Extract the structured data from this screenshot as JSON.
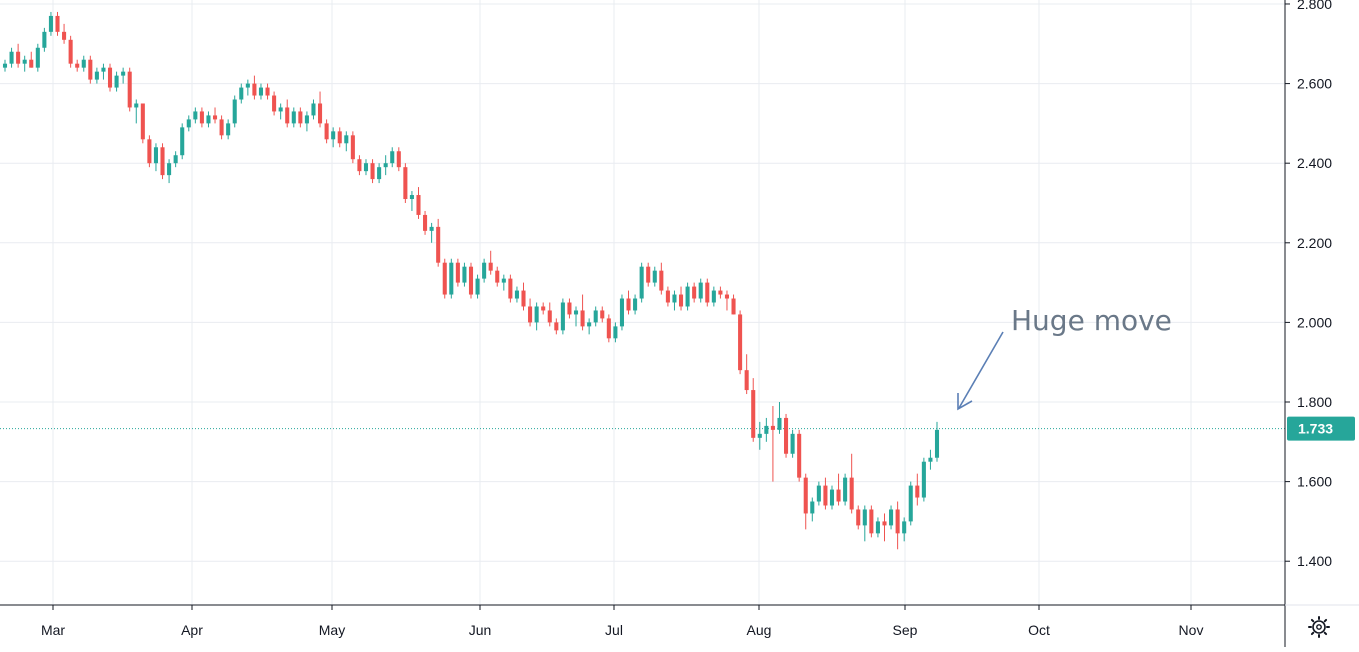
{
  "chart_data": {
    "type": "candlestick",
    "x_tick_labels": [
      "Mar",
      "Apr",
      "May",
      "Jun",
      "Jul",
      "Aug",
      "Sep",
      "Oct",
      "Nov"
    ],
    "y_tick_labels": [
      "1.400",
      "1.600",
      "1.800",
      "2.000",
      "2.200",
      "2.400",
      "2.600",
      "2.800"
    ],
    "ylim": [
      1.29,
      2.81
    ],
    "grid": true,
    "last_price": 1.733,
    "last_price_label": "1.733",
    "annotation": {
      "text": "Huge move"
    },
    "colors": {
      "up": "#26a69a",
      "down": "#ef5350",
      "price_line": "#26a69a",
      "grid": "#e9ecf1",
      "axis": "#131722"
    },
    "candles": [
      [
        2.64,
        2.66,
        2.63,
        2.65
      ],
      [
        2.65,
        2.69,
        2.64,
        2.68
      ],
      [
        2.68,
        2.7,
        2.64,
        2.65
      ],
      [
        2.65,
        2.67,
        2.63,
        2.66
      ],
      [
        2.66,
        2.68,
        2.64,
        2.64
      ],
      [
        2.64,
        2.7,
        2.63,
        2.69
      ],
      [
        2.69,
        2.74,
        2.68,
        2.73
      ],
      [
        2.73,
        2.78,
        2.72,
        2.77
      ],
      [
        2.77,
        2.78,
        2.72,
        2.73
      ],
      [
        2.73,
        2.75,
        2.7,
        2.71
      ],
      [
        2.71,
        2.72,
        2.64,
        2.65
      ],
      [
        2.65,
        2.66,
        2.63,
        2.64
      ],
      [
        2.64,
        2.67,
        2.63,
        2.66
      ],
      [
        2.66,
        2.67,
        2.6,
        2.61
      ],
      [
        2.61,
        2.64,
        2.6,
        2.63
      ],
      [
        2.63,
        2.65,
        2.61,
        2.64
      ],
      [
        2.64,
        2.65,
        2.58,
        2.59
      ],
      [
        2.59,
        2.63,
        2.58,
        2.62
      ],
      [
        2.62,
        2.64,
        2.6,
        2.63
      ],
      [
        2.63,
        2.64,
        2.53,
        2.54
      ],
      [
        2.54,
        2.56,
        2.5,
        2.55
      ],
      [
        2.55,
        2.55,
        2.45,
        2.46
      ],
      [
        2.46,
        2.47,
        2.39,
        2.4
      ],
      [
        2.4,
        2.45,
        2.38,
        2.44
      ],
      [
        2.44,
        2.45,
        2.36,
        2.37
      ],
      [
        2.37,
        2.41,
        2.35,
        2.4
      ],
      [
        2.4,
        2.43,
        2.39,
        2.42
      ],
      [
        2.42,
        2.5,
        2.41,
        2.49
      ],
      [
        2.49,
        2.52,
        2.48,
        2.51
      ],
      [
        2.51,
        2.54,
        2.5,
        2.53
      ],
      [
        2.53,
        2.54,
        2.49,
        2.5
      ],
      [
        2.5,
        2.53,
        2.49,
        2.52
      ],
      [
        2.52,
        2.54,
        2.5,
        2.51
      ],
      [
        2.51,
        2.52,
        2.46,
        2.47
      ],
      [
        2.47,
        2.51,
        2.46,
        2.5
      ],
      [
        2.5,
        2.57,
        2.49,
        2.56
      ],
      [
        2.56,
        2.6,
        2.55,
        2.59
      ],
      [
        2.59,
        2.61,
        2.57,
        2.6
      ],
      [
        2.6,
        2.62,
        2.56,
        2.57
      ],
      [
        2.57,
        2.6,
        2.56,
        2.59
      ],
      [
        2.59,
        2.6,
        2.56,
        2.57
      ],
      [
        2.57,
        2.58,
        2.52,
        2.53
      ],
      [
        2.53,
        2.55,
        2.51,
        2.54
      ],
      [
        2.54,
        2.56,
        2.49,
        2.5
      ],
      [
        2.5,
        2.54,
        2.49,
        2.53
      ],
      [
        2.53,
        2.54,
        2.49,
        2.5
      ],
      [
        2.5,
        2.53,
        2.48,
        2.52
      ],
      [
        2.52,
        2.56,
        2.51,
        2.55
      ],
      [
        2.55,
        2.58,
        2.49,
        2.5
      ],
      [
        2.5,
        2.51,
        2.45,
        2.46
      ],
      [
        2.46,
        2.49,
        2.44,
        2.48
      ],
      [
        2.48,
        2.49,
        2.44,
        2.45
      ],
      [
        2.45,
        2.48,
        2.43,
        2.47
      ],
      [
        2.47,
        2.48,
        2.4,
        2.41
      ],
      [
        2.41,
        2.42,
        2.37,
        2.38
      ],
      [
        2.38,
        2.41,
        2.37,
        2.4
      ],
      [
        2.4,
        2.41,
        2.35,
        2.36
      ],
      [
        2.36,
        2.4,
        2.35,
        2.39
      ],
      [
        2.39,
        2.42,
        2.37,
        2.4
      ],
      [
        2.4,
        2.44,
        2.39,
        2.43
      ],
      [
        2.43,
        2.44,
        2.38,
        2.39
      ],
      [
        2.39,
        2.4,
        2.3,
        2.31
      ],
      [
        2.31,
        2.33,
        2.28,
        2.32
      ],
      [
        2.32,
        2.34,
        2.26,
        2.27
      ],
      [
        2.27,
        2.28,
        2.22,
        2.23
      ],
      [
        2.23,
        2.25,
        2.2,
        2.24
      ],
      [
        2.24,
        2.26,
        2.14,
        2.15
      ],
      [
        2.15,
        2.16,
        2.06,
        2.07
      ],
      [
        2.07,
        2.16,
        2.06,
        2.15
      ],
      [
        2.15,
        2.16,
        2.09,
        2.1
      ],
      [
        2.1,
        2.15,
        2.09,
        2.14
      ],
      [
        2.14,
        2.15,
        2.06,
        2.07
      ],
      [
        2.07,
        2.12,
        2.06,
        2.11
      ],
      [
        2.11,
        2.16,
        2.1,
        2.15
      ],
      [
        2.15,
        2.18,
        2.12,
        2.13
      ],
      [
        2.13,
        2.14,
        2.09,
        2.1
      ],
      [
        2.1,
        2.12,
        2.08,
        2.11
      ],
      [
        2.11,
        2.12,
        2.05,
        2.06
      ],
      [
        2.06,
        2.09,
        2.05,
        2.08
      ],
      [
        2.08,
        2.1,
        2.03,
        2.04
      ],
      [
        2.04,
        2.06,
        1.99,
        2.0
      ],
      [
        2.0,
        2.05,
        1.98,
        2.04
      ],
      [
        2.04,
        2.05,
        2.02,
        2.03
      ],
      [
        2.03,
        2.05,
        1.99,
        2.0
      ],
      [
        2.0,
        2.01,
        1.97,
        1.98
      ],
      [
        1.98,
        2.06,
        1.97,
        2.05
      ],
      [
        2.05,
        2.06,
        2.01,
        2.02
      ],
      [
        2.02,
        2.04,
        1.99,
        2.03
      ],
      [
        2.03,
        2.07,
        1.98,
        1.99
      ],
      [
        1.99,
        2.01,
        1.97,
        2.0
      ],
      [
        2.0,
        2.04,
        1.99,
        2.03
      ],
      [
        2.03,
        2.04,
        2.0,
        2.01
      ],
      [
        2.01,
        2.02,
        1.95,
        1.96
      ],
      [
        1.96,
        2.0,
        1.95,
        1.99
      ],
      [
        1.99,
        2.07,
        1.98,
        2.06
      ],
      [
        2.06,
        2.08,
        2.02,
        2.03
      ],
      [
        2.03,
        2.07,
        2.02,
        2.06
      ],
      [
        2.06,
        2.15,
        2.05,
        2.14
      ],
      [
        2.14,
        2.15,
        2.09,
        2.1
      ],
      [
        2.1,
        2.14,
        2.09,
        2.13
      ],
      [
        2.13,
        2.15,
        2.07,
        2.08
      ],
      [
        2.08,
        2.09,
        2.04,
        2.05
      ],
      [
        2.05,
        2.08,
        2.03,
        2.07
      ],
      [
        2.07,
        2.09,
        2.03,
        2.04
      ],
      [
        2.04,
        2.1,
        2.03,
        2.09
      ],
      [
        2.09,
        2.1,
        2.05,
        2.06
      ],
      [
        2.06,
        2.11,
        2.05,
        2.1
      ],
      [
        2.1,
        2.11,
        2.04,
        2.05
      ],
      [
        2.05,
        2.09,
        2.04,
        2.08
      ],
      [
        2.08,
        2.09,
        2.06,
        2.07
      ],
      [
        2.07,
        2.08,
        2.03,
        2.06
      ],
      [
        2.06,
        2.07,
        2.02,
        2.02
      ],
      [
        2.02,
        2.03,
        1.87,
        1.88
      ],
      [
        1.88,
        1.92,
        1.82,
        1.83
      ],
      [
        1.83,
        1.86,
        1.7,
        1.71
      ],
      [
        1.71,
        1.75,
        1.68,
        1.72
      ],
      [
        1.72,
        1.76,
        1.7,
        1.74
      ],
      [
        1.74,
        1.79,
        1.6,
        1.73
      ],
      [
        1.73,
        1.8,
        1.72,
        1.76
      ],
      [
        1.76,
        1.77,
        1.66,
        1.67
      ],
      [
        1.67,
        1.73,
        1.66,
        1.72
      ],
      [
        1.72,
        1.73,
        1.6,
        1.61
      ],
      [
        1.61,
        1.62,
        1.48,
        1.52
      ],
      [
        1.52,
        1.56,
        1.5,
        1.55
      ],
      [
        1.55,
        1.6,
        1.54,
        1.59
      ],
      [
        1.59,
        1.61,
        1.53,
        1.54
      ],
      [
        1.54,
        1.59,
        1.53,
        1.58
      ],
      [
        1.58,
        1.62,
        1.54,
        1.55
      ],
      [
        1.55,
        1.62,
        1.54,
        1.61
      ],
      [
        1.61,
        1.67,
        1.52,
        1.53
      ],
      [
        1.53,
        1.54,
        1.48,
        1.49
      ],
      [
        1.49,
        1.54,
        1.45,
        1.53
      ],
      [
        1.53,
        1.54,
        1.46,
        1.47
      ],
      [
        1.47,
        1.51,
        1.46,
        1.5
      ],
      [
        1.5,
        1.52,
        1.45,
        1.49
      ],
      [
        1.49,
        1.54,
        1.48,
        1.53
      ],
      [
        1.53,
        1.55,
        1.43,
        1.47
      ],
      [
        1.47,
        1.51,
        1.45,
        1.5
      ],
      [
        1.5,
        1.6,
        1.49,
        1.59
      ],
      [
        1.59,
        1.62,
        1.54,
        1.56
      ],
      [
        1.56,
        1.66,
        1.55,
        1.65
      ],
      [
        1.65,
        1.68,
        1.63,
        1.66
      ],
      [
        1.66,
        1.75,
        1.65,
        1.73
      ]
    ]
  }
}
